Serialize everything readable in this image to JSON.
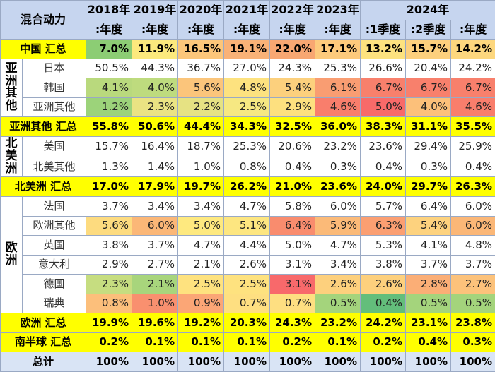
{
  "table": {
    "corner": "混合动力",
    "years": [
      {
        "label": "2018年",
        "span": 1
      },
      {
        "label": "2019年",
        "span": 1
      },
      {
        "label": "2020年",
        "span": 1
      },
      {
        "label": "2021年",
        "span": 1
      },
      {
        "label": "2022年",
        "span": 1
      },
      {
        "label": "2023年",
        "span": 1
      },
      {
        "label": "2024年",
        "span": 3
      }
    ],
    "periods": [
      ":年度",
      ":年度",
      ":年度",
      ":年度",
      ":年度",
      ":年度",
      ":1季度",
      ":2季度",
      ":年度"
    ],
    "rows": [
      {
        "type": "total",
        "label": "中国 汇总",
        "values": [
          "7.0%",
          "11.9%",
          "16.5%",
          "19.1%",
          "22.0%",
          "17.1%",
          "13.2%",
          "15.7%",
          "14.2%"
        ],
        "colors": [
          "#8ccd74",
          "#fce97d",
          "#fcc67a",
          "#f9b277",
          "#f8a772",
          "#fdca7c",
          "#fde27f",
          "#fdd07d",
          "#fdd77e"
        ]
      },
      {
        "type": "country",
        "region": "亚洲其他",
        "region_span": 3,
        "label": "日本",
        "values": [
          "50.5%",
          "44.3%",
          "36.7%",
          "27.0%",
          "24.3%",
          "25.3%",
          "26.6%",
          "20.4%",
          "24.2%"
        ],
        "colors": [
          "#ffffff",
          "#ffffff",
          "#ffffff",
          "#ffffff",
          "#ffffff",
          "#ffffff",
          "#ffffff",
          "#ffffff",
          "#ffffff"
        ]
      },
      {
        "type": "country",
        "label": "韩国",
        "values": [
          "4.1%",
          "4.0%",
          "5.6%",
          "4.8%",
          "5.4%",
          "6.1%",
          "6.7%",
          "6.7%",
          "6.7%"
        ],
        "colors": [
          "#b9d97d",
          "#bedb7e",
          "#fbc57b",
          "#fde27f",
          "#fcd07d",
          "#f99d72",
          "#f8806c",
          "#f8806c",
          "#f8806c"
        ]
      },
      {
        "type": "country",
        "label": "亚洲其他",
        "values": [
          "1.2%",
          "2.3%",
          "2.2%",
          "2.5%",
          "2.9%",
          "4.6%",
          "5.0%",
          "4.0%",
          "4.6%"
        ],
        "colors": [
          "#9cd37a",
          "#eae383",
          "#e6e283",
          "#f6e882",
          "#fde07f",
          "#f97e6c",
          "#f86a69",
          "#fcc07a",
          "#f97e6c"
        ]
      },
      {
        "type": "total",
        "label": "亚洲其他 汇总",
        "values": [
          "55.8%",
          "50.6%",
          "44.4%",
          "34.3%",
          "32.5%",
          "36.0%",
          "38.3%",
          "31.1%",
          "35.5%"
        ],
        "colors": [
          "#ffff00",
          "#ffff00",
          "#ffff00",
          "#ffff00",
          "#ffff00",
          "#ffff00",
          "#ffff00",
          "#ffff00",
          "#ffff00"
        ]
      },
      {
        "type": "country",
        "region": "北美洲",
        "region_span": 2,
        "label": "美国",
        "values": [
          "15.7%",
          "16.4%",
          "18.7%",
          "25.3%",
          "20.6%",
          "23.2%",
          "23.6%",
          "29.4%",
          "25.9%"
        ],
        "colors": [
          "#ffffff",
          "#ffffff",
          "#ffffff",
          "#ffffff",
          "#ffffff",
          "#ffffff",
          "#ffffff",
          "#ffffff",
          "#ffffff"
        ]
      },
      {
        "type": "country",
        "label": "北美其他",
        "values": [
          "1.3%",
          "1.4%",
          "1.0%",
          "0.8%",
          "0.4%",
          "0.3%",
          "0.4%",
          "0.3%",
          "0.4%"
        ],
        "colors": [
          "#ffffff",
          "#ffffff",
          "#ffffff",
          "#ffffff",
          "#ffffff",
          "#ffffff",
          "#ffffff",
          "#ffffff",
          "#ffffff"
        ]
      },
      {
        "type": "total",
        "label": "北美洲 汇总",
        "values": [
          "17.0%",
          "17.9%",
          "19.7%",
          "26.2%",
          "21.0%",
          "23.6%",
          "24.0%",
          "29.7%",
          "26.3%"
        ],
        "colors": [
          "#ffff00",
          "#ffff00",
          "#ffff00",
          "#ffff00",
          "#ffff00",
          "#ffff00",
          "#ffff00",
          "#ffff00",
          "#ffff00"
        ]
      },
      {
        "type": "country",
        "region": "欧洲",
        "region_span": 6,
        "label": "法国",
        "values": [
          "3.7%",
          "3.4%",
          "3.4%",
          "4.7%",
          "5.8%",
          "6.0%",
          "5.7%",
          "6.4%",
          "6.0%"
        ],
        "colors": [
          "#ffffff",
          "#ffffff",
          "#ffffff",
          "#ffffff",
          "#ffffff",
          "#ffffff",
          "#ffffff",
          "#ffffff",
          "#ffffff"
        ]
      },
      {
        "type": "country",
        "label": "欧洲其他",
        "values": [
          "5.6%",
          "6.0%",
          "5.0%",
          "5.1%",
          "6.4%",
          "5.9%",
          "6.3%",
          "5.4%",
          "6.0%"
        ],
        "colors": [
          "#fddb7f",
          "#fbb777",
          "#fee97f",
          "#fde680",
          "#f98c6e",
          "#fbba78",
          "#fb9f72",
          "#fdd27e",
          "#fbb777"
        ]
      },
      {
        "type": "country",
        "label": "英国",
        "values": [
          "3.8%",
          "3.7%",
          "4.7%",
          "4.4%",
          "5.0%",
          "4.7%",
          "5.3%",
          "4.1%",
          "4.8%"
        ],
        "colors": [
          "#ffffff",
          "#ffffff",
          "#ffffff",
          "#ffffff",
          "#ffffff",
          "#ffffff",
          "#ffffff",
          "#ffffff",
          "#ffffff"
        ]
      },
      {
        "type": "country",
        "label": "意大利",
        "values": [
          "2.9%",
          "2.7%",
          "2.1%",
          "2.6%",
          "3.1%",
          "3.4%",
          "3.8%",
          "3.7%",
          "3.7%"
        ],
        "colors": [
          "#ffffff",
          "#ffffff",
          "#ffffff",
          "#ffffff",
          "#ffffff",
          "#ffffff",
          "#ffffff",
          "#ffffff",
          "#ffffff"
        ]
      },
      {
        "type": "country",
        "label": "德国",
        "values": [
          "2.3%",
          "2.1%",
          "2.5%",
          "2.5%",
          "3.1%",
          "2.6%",
          "2.6%",
          "2.8%",
          "2.7%"
        ],
        "colors": [
          "#c6dd80",
          "#a8d57c",
          "#fee27f",
          "#fee27f",
          "#f8696b",
          "#fdd07d",
          "#fdd07d",
          "#fbae76",
          "#fcc27b"
        ]
      },
      {
        "type": "country",
        "label": "瑞典",
        "values": [
          "0.8%",
          "1.0%",
          "0.9%",
          "0.7%",
          "0.7%",
          "0.5%",
          "0.4%",
          "0.5%",
          "0.5%"
        ],
        "colors": [
          "#fcbf7b",
          "#f9906f",
          "#fba676",
          "#fedf81",
          "#fedf81",
          "#a4d47c",
          "#63be7b",
          "#a4d47c",
          "#a4d47c"
        ]
      },
      {
        "type": "total",
        "label": "欧洲 汇总",
        "values": [
          "19.9%",
          "19.6%",
          "19.2%",
          "20.3%",
          "24.3%",
          "23.2%",
          "24.2%",
          "23.1%",
          "23.8%"
        ],
        "colors": [
          "#ffff00",
          "#ffff00",
          "#ffff00",
          "#ffff00",
          "#ffff00",
          "#ffff00",
          "#ffff00",
          "#ffff00",
          "#ffff00"
        ]
      },
      {
        "type": "total",
        "label": "南半球 汇总",
        "values": [
          "0.2%",
          "0.1%",
          "0.1%",
          "0.1%",
          "0.2%",
          "0.1%",
          "0.2%",
          "0.4%",
          "0.3%"
        ],
        "colors": [
          "#ffff00",
          "#ffff00",
          "#ffff00",
          "#ffff00",
          "#ffff00",
          "#ffff00",
          "#ffff00",
          "#ffff00",
          "#ffff00"
        ]
      },
      {
        "type": "grand",
        "label": "总计",
        "values": [
          "100%",
          "100%",
          "100%",
          "100%",
          "100%",
          "100%",
          "100%",
          "100%",
          "100%"
        ],
        "colors": [
          "#d9e4f5",
          "#d9e4f5",
          "#d9e4f5",
          "#d9e4f5",
          "#d9e4f5",
          "#d9e4f5",
          "#d9e4f5",
          "#d9e4f5",
          "#d9e4f5"
        ]
      }
    ]
  }
}
